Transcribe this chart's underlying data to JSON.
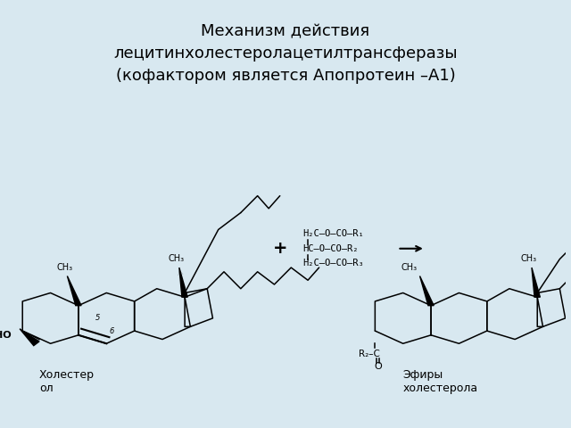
{
  "title_line1": "Механизм действия",
  "title_line2": "лецитинхолестеролацетилтрансферазы",
  "title_line3": "(кофактором является Апопротеин –А1)",
  "bg_color_outer": "#d8e8f0",
  "bg_color_inner": "#c5daea",
  "label_cholesterol": "Холестер\nол",
  "label_esters": "Эфиры\nхолестерола",
  "title_fontsize": 13,
  "label_fontsize": 9,
  "fig_width": 6.4,
  "fig_height": 4.8
}
